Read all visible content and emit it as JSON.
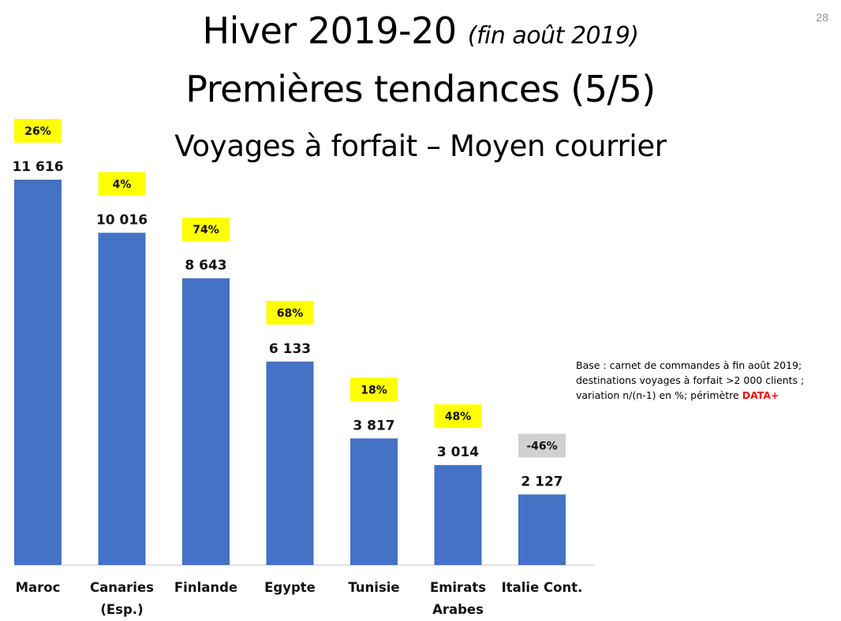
{
  "slide": {
    "number": "28",
    "title_main": "Hiver 2019-20",
    "title_sub": "(fin août 2019)",
    "title_line2": "Premières tendances (5/5)",
    "title_line3": "Voyages à forfait – Moyen courrier"
  },
  "note": {
    "line1": "Base : carnet de commandes à fin août 2019;",
    "line2": "destinations voyages à forfait >2 000 clients ;",
    "line3_prefix": "variation n/(n-1) en %; périmètre ",
    "line3_accent": "DATA+"
  },
  "chart_data": {
    "type": "bar",
    "title": "",
    "xlabel": "",
    "ylabel": "",
    "ylim": [
      0,
      11616
    ],
    "grid": false,
    "legend": "none",
    "categories": [
      [
        "Maroc"
      ],
      [
        "Canaries",
        "(Esp.)"
      ],
      [
        "Finlande"
      ],
      [
        "Egypte"
      ],
      [
        "Tunisie"
      ],
      [
        "Emirats",
        "Arabes"
      ],
      [
        "Italie Cont."
      ]
    ],
    "values": [
      11616,
      10016,
      8643,
      6133,
      3817,
      3014,
      2127
    ],
    "value_labels": [
      "11 616",
      "10 016",
      "8 643",
      "6 133",
      "3 817",
      "3 014",
      "2 127"
    ],
    "variation_labels": [
      "26%",
      "4%",
      "74%",
      "68%",
      "18%",
      "48%",
      "-46%"
    ],
    "colors": {
      "bar": "#4472c4",
      "badge_positive": "#ffff00",
      "badge_negative": "#d0d0d0",
      "axis": "#d9d9d9",
      "accent_text": "#e3130f"
    }
  }
}
